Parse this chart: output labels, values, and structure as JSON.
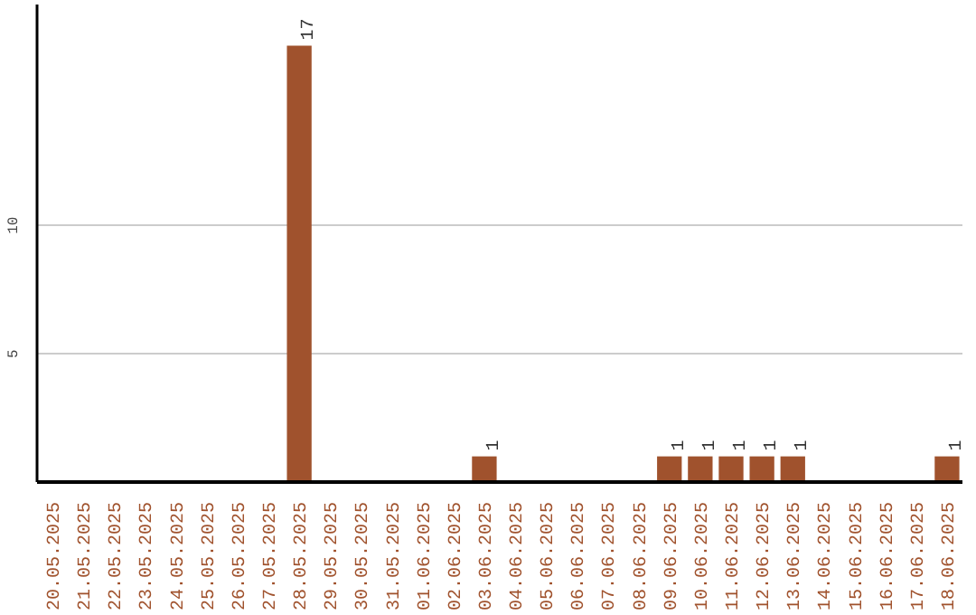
{
  "chart_data": {
    "type": "bar",
    "categories": [
      "20.05.2025",
      "21.05.2025",
      "22.05.2025",
      "23.05.2025",
      "24.05.2025",
      "25.05.2025",
      "26.05.2025",
      "27.05.2025",
      "28.05.2025",
      "29.05.2025",
      "30.05.2025",
      "31.05.2025",
      "01.06.2025",
      "02.06.2025",
      "03.06.2025",
      "04.06.2025",
      "05.06.2025",
      "06.06.2025",
      "07.06.2025",
      "08.06.2025",
      "09.06.2025",
      "10.06.2025",
      "11.06.2025",
      "12.06.2025",
      "13.06.2025",
      "14.06.2025",
      "15.06.2025",
      "16.06.2025",
      "17.06.2025",
      "18.06.2025"
    ],
    "values": [
      0,
      0,
      0,
      0,
      0,
      0,
      0,
      0,
      17,
      0,
      0,
      0,
      0,
      0,
      1,
      0,
      0,
      0,
      0,
      0,
      1,
      1,
      1,
      1,
      1,
      0,
      0,
      0,
      0,
      1
    ],
    "value_labels": [
      null,
      null,
      null,
      null,
      null,
      null,
      null,
      null,
      "17",
      null,
      null,
      null,
      null,
      null,
      "1",
      null,
      null,
      null,
      null,
      null,
      "1",
      "1",
      "1",
      "1",
      "1",
      null,
      null,
      null,
      null,
      "1"
    ],
    "color": "#a0522d",
    "ylim": [
      0,
      18.6
    ],
    "yticks": [
      5,
      10
    ],
    "grid": "y"
  }
}
